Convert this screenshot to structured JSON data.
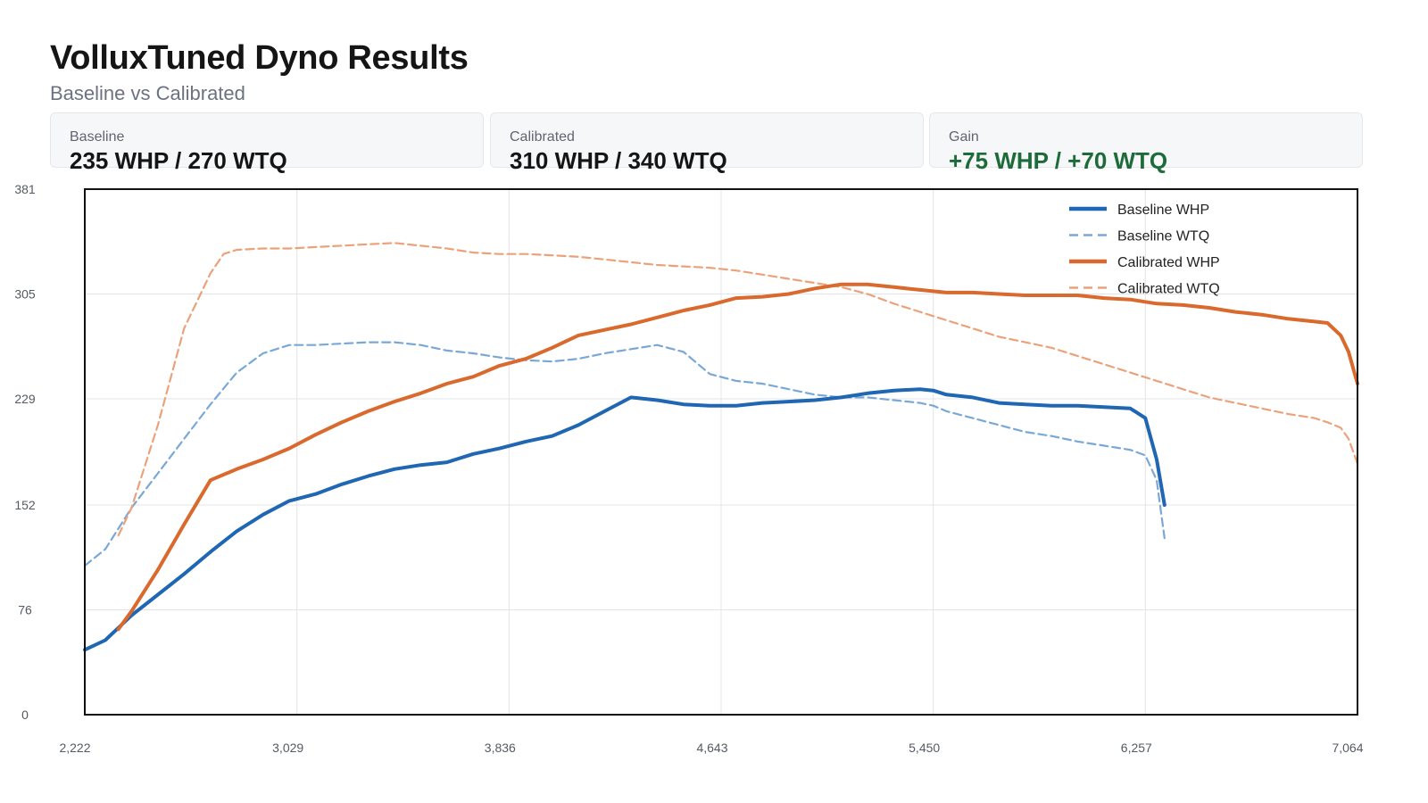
{
  "header": {
    "title": "VolluxTuned Dyno Results",
    "subtitle": "Baseline vs Calibrated"
  },
  "cards": [
    {
      "label": "Baseline",
      "value": "235 WHP / 270 WTQ"
    },
    {
      "label": "Calibrated",
      "value": "310 WHP / 340 WTQ"
    },
    {
      "label": "Gain",
      "value": "+75 WHP / +70 WTQ"
    }
  ],
  "colors": {
    "baseline": "#1f66b3",
    "baseline_tq": "#7aa8d6",
    "calibrated": "#d9692c",
    "calibrated_tq": "#eba27a",
    "gain_text": "#1e6b3a",
    "grid": "#e1e4e8"
  },
  "chart_data": {
    "type": "line",
    "title": "",
    "xlabel": "",
    "ylabel": "",
    "xlim": [
      2222,
      7064
    ],
    "ylim": [
      0,
      381
    ],
    "x_ticks": [
      "2,222",
      "3,029",
      "3,836",
      "4,643",
      "5,450",
      "6,257",
      "7,064"
    ],
    "y_ticks": [
      "0",
      "76",
      "152",
      "229",
      "305",
      "381"
    ],
    "grid": true,
    "legend_position": "top-right",
    "series": [
      {
        "name": "Baseline WHP",
        "style": "solid",
        "color": "#1f66b3",
        "x": [
          2222,
          2300,
          2400,
          2500,
          2600,
          2700,
          2800,
          2900,
          3000,
          3100,
          3200,
          3300,
          3400,
          3500,
          3600,
          3700,
          3800,
          3900,
          4000,
          4100,
          4200,
          4300,
          4400,
          4500,
          4600,
          4700,
          4800,
          4900,
          5000,
          5100,
          5200,
          5300,
          5400,
          5450,
          5500,
          5600,
          5700,
          5800,
          5900,
          6000,
          6100,
          6200,
          6257,
          6300,
          6330
        ],
        "y": [
          47,
          54,
          72,
          87,
          102,
          118,
          133,
          145,
          155,
          160,
          167,
          173,
          178,
          181,
          183,
          189,
          193,
          198,
          202,
          210,
          220,
          230,
          228,
          225,
          224,
          224,
          226,
          227,
          228,
          230,
          233,
          235,
          236,
          235,
          232,
          230,
          226,
          225,
          224,
          224,
          223,
          222,
          215,
          185,
          152
        ]
      },
      {
        "name": "Baseline WTQ",
        "style": "dashed",
        "color": "#7aa8d6",
        "x": [
          2222,
          2300,
          2400,
          2500,
          2600,
          2700,
          2800,
          2900,
          3000,
          3100,
          3200,
          3300,
          3400,
          3500,
          3600,
          3700,
          3800,
          3900,
          4000,
          4100,
          4200,
          4300,
          4400,
          4500,
          4600,
          4700,
          4800,
          4900,
          5000,
          5100,
          5200,
          5300,
          5400,
          5450,
          5500,
          5600,
          5700,
          5800,
          5900,
          6000,
          6100,
          6200,
          6257,
          6300,
          6330
        ],
        "y": [
          108,
          120,
          150,
          175,
          200,
          225,
          248,
          262,
          268,
          268,
          269,
          270,
          270,
          268,
          264,
          262,
          259,
          257,
          256,
          258,
          262,
          265,
          268,
          263,
          247,
          242,
          240,
          236,
          232,
          230,
          230,
          228,
          226,
          224,
          220,
          215,
          210,
          205,
          202,
          198,
          195,
          192,
          188,
          170,
          128
        ]
      },
      {
        "name": "Calibrated WHP",
        "style": "solid",
        "color": "#d9692c",
        "x": [
          2350,
          2400,
          2500,
          2600,
          2700,
          2800,
          2900,
          3000,
          3100,
          3200,
          3300,
          3400,
          3500,
          3600,
          3700,
          3800,
          3900,
          4000,
          4100,
          4200,
          4300,
          4400,
          4500,
          4600,
          4700,
          4800,
          4900,
          5000,
          5100,
          5200,
          5300,
          5400,
          5500,
          5600,
          5700,
          5800,
          5900,
          6000,
          6100,
          6200,
          6300,
          6400,
          6500,
          6600,
          6700,
          6800,
          6900,
          6950,
          7000,
          7030,
          7064
        ],
        "y": [
          62,
          75,
          105,
          138,
          170,
          178,
          185,
          193,
          203,
          212,
          220,
          227,
          233,
          240,
          245,
          253,
          258,
          266,
          275,
          279,
          283,
          288,
          293,
          297,
          302,
          303,
          305,
          309,
          312,
          312,
          310,
          308,
          306,
          306,
          305,
          304,
          304,
          304,
          302,
          301,
          298,
          297,
          295,
          292,
          290,
          287,
          285,
          284,
          275,
          263,
          240
        ]
      },
      {
        "name": "Calibrated WTQ",
        "style": "dashed",
        "color": "#eba27a",
        "x": [
          2350,
          2400,
          2500,
          2600,
          2700,
          2750,
          2800,
          2900,
          3000,
          3100,
          3200,
          3300,
          3400,
          3500,
          3600,
          3700,
          3800,
          3900,
          4000,
          4100,
          4200,
          4300,
          4400,
          4500,
          4600,
          4700,
          4800,
          4900,
          5000,
          5100,
          5200,
          5300,
          5400,
          5500,
          5600,
          5700,
          5800,
          5900,
          6000,
          6100,
          6200,
          6300,
          6400,
          6500,
          6600,
          6700,
          6800,
          6900,
          6950,
          7000,
          7030,
          7064
        ],
        "y": [
          130,
          150,
          210,
          280,
          320,
          334,
          337,
          338,
          338,
          339,
          340,
          341,
          342,
          340,
          338,
          335,
          334,
          334,
          333,
          332,
          330,
          328,
          326,
          325,
          324,
          322,
          319,
          316,
          313,
          310,
          305,
          298,
          292,
          286,
          280,
          274,
          270,
          266,
          260,
          254,
          248,
          242,
          236,
          230,
          226,
          222,
          218,
          215,
          212,
          208,
          200,
          182
        ]
      }
    ]
  }
}
